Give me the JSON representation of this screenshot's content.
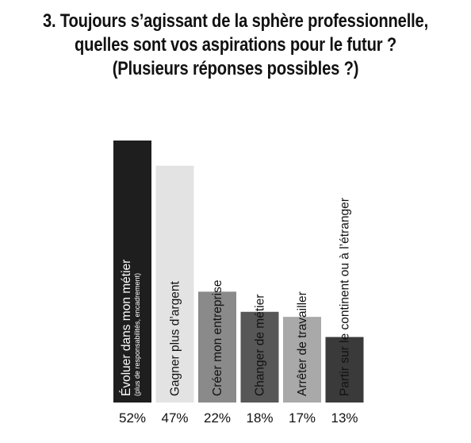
{
  "header": {
    "title_line1": "3. Toujours s’agissant de la sphère professionnelle,",
    "title_line2": "quelles sont vos aspirations pour le futur ?",
    "title_line3": "(Plusieurs réponses possibles ?)"
  },
  "chart_data": {
    "type": "bar",
    "title": "3. Toujours s’agissant de la sphère professionnelle, quelles sont vos aspirations pour le futur ? (Plusieurs réponses possibles ?)",
    "categories": [
      "Évoluer dans mon métier",
      "Gagner plus d’argent",
      "Créer mon entreprise",
      "Changer de métier",
      "Arrêter de travailler",
      "Partir sur le continent ou à l’étranger"
    ],
    "sublabels": [
      "(plus de responsabilités, encadrement)",
      "",
      "",
      "",
      "",
      ""
    ],
    "values": [
      52,
      47,
      22,
      18,
      17,
      13
    ],
    "value_labels": [
      "52%",
      "47%",
      "22%",
      "18%",
      "17%",
      "13%"
    ],
    "bar_colors": [
      "#1e1e1e",
      "#e3e3e3",
      "#8a8a8a",
      "#575757",
      "#a9a9a9",
      "#3a3a3a"
    ],
    "label_colors": [
      "#ffffff",
      "#111111",
      "#111111",
      "#111111",
      "#111111",
      "#111111"
    ],
    "ylim": [
      0,
      52
    ],
    "grid": false,
    "legend": "none"
  }
}
